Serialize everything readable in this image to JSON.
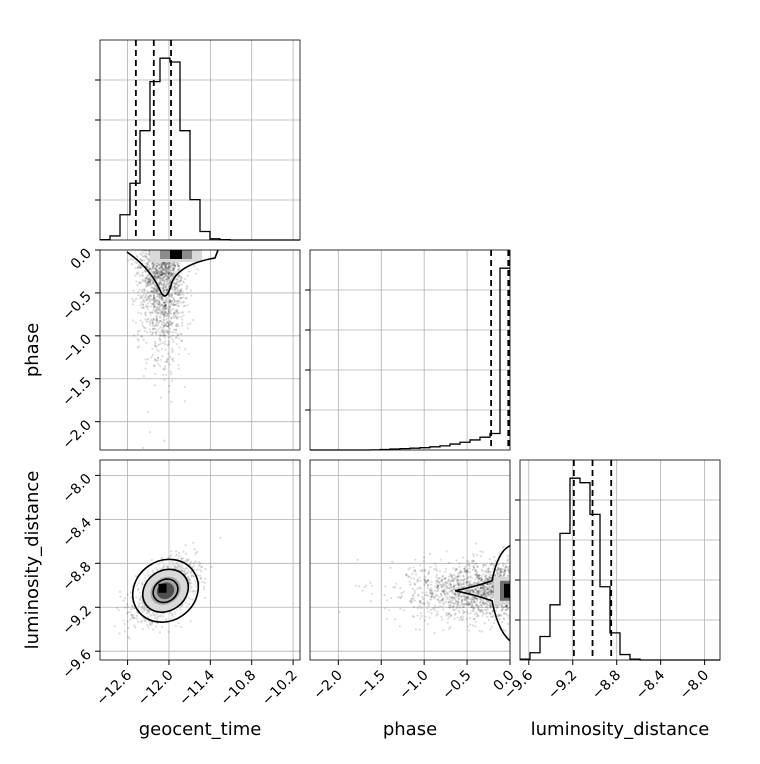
{
  "chart_data": {
    "type": "corner",
    "parameters": [
      "geocent_time",
      "phase",
      "luminosity_distance"
    ],
    "axis_labels": {
      "x": [
        "geocent_time",
        "phase",
        "luminosity_distance"
      ],
      "y": [
        "phase",
        "luminosity_distance"
      ]
    },
    "ranges": {
      "geocent_time": [
        -13.0,
        -10.1
      ],
      "phase": [
        -2.33,
        0.0
      ],
      "luminosity_distance": [
        -9.68,
        -7.86
      ]
    },
    "ticks": {
      "geocent_time": [
        -12.6,
        -12.0,
        -11.4,
        -10.8,
        -10.2
      ],
      "phase": [
        -2.0,
        -1.5,
        -1.0,
        -0.5,
        0.0
      ],
      "luminosity_distance": [
        -9.6,
        -9.2,
        -8.8,
        -8.4,
        -8.0
      ]
    },
    "tick_labels": {
      "geocent_time": [
        "−12.6",
        "−12.0",
        "−11.4",
        "−10.8",
        "−10.2"
      ],
      "phase": [
        "−2.0",
        "−1.5",
        "−1.0",
        "−0.5",
        "0.0"
      ],
      "luminosity_distance": [
        "−9.6",
        "−9.2",
        "−8.8",
        "−8.4",
        "−8.0"
      ]
    },
    "histograms": {
      "geocent_time": {
        "bin_edges": [
          -13.0,
          -12.855,
          -12.71,
          -12.565,
          -12.42,
          -12.275,
          -12.13,
          -11.985,
          -11.84,
          -11.695,
          -11.55,
          -11.405,
          -11.26,
          -11.115,
          -10.97,
          -10.825,
          -10.68,
          -10.535,
          -10.39,
          -10.245,
          -10.1
        ],
        "counts": [
          2,
          20,
          125,
          281,
          541,
          784,
          900,
          881,
          541,
          200,
          42,
          6,
          2,
          0,
          0,
          0,
          0,
          0,
          0,
          0
        ],
        "quantiles": [
          -12.48,
          -12.22,
          -11.97
        ]
      },
      "phase": {
        "bin_edges": [
          -2.33,
          -2.2135,
          -2.097,
          -1.9805,
          -1.864,
          -1.7475,
          -1.631,
          -1.5145,
          -1.398,
          -1.2815,
          -1.165,
          -1.0485,
          -0.932,
          -0.8155,
          -0.699,
          -0.5825,
          -0.466,
          -0.3495,
          -0.233,
          -0.1165,
          0.0
        ],
        "counts": [
          0,
          0,
          0,
          0,
          0,
          0,
          1,
          5,
          10,
          15,
          20,
          25,
          35,
          45,
          65,
          85,
          110,
          140,
          180,
          1985
        ],
        "quantiles": [
          -0.22,
          -0.02,
          0.0
        ]
      },
      "luminosity_distance": {
        "bin_edges": [
          -9.68,
          -9.589,
          -9.498,
          -9.407,
          -9.316,
          -9.225,
          -9.134,
          -9.043,
          -8.952,
          -8.861,
          -8.77,
          -8.679,
          -8.588,
          -8.497,
          -8.406,
          -8.315,
          -8.224,
          -8.133,
          -8.042,
          -7.951,
          -7.86
        ],
        "counts": [
          5,
          40,
          130,
          305,
          700,
          1005,
          980,
          805,
          405,
          150,
          30,
          5,
          0,
          0,
          0,
          0,
          0,
          0,
          0,
          0
        ],
        "quantiles": [
          -9.19,
          -9.02,
          -8.85
        ]
      }
    },
    "scatter": {
      "geocent_time_vs_phase": {
        "center": [
          -12.1,
          -0.15
        ],
        "spread": [
          0.17,
          0.55
        ]
      },
      "geocent_time_vs_luminosity_distance": {
        "center": [
          -12.05,
          -9.05
        ],
        "spread": [
          0.22,
          0.13
        ],
        "correlation": 0.5
      },
      "phase_vs_luminosity_distance": {
        "center": [
          -0.15,
          -9.05
        ],
        "spread": [
          0.55,
          0.13
        ]
      }
    },
    "contour_levels": [
      0.118,
      0.393,
      0.675,
      0.865
    ],
    "grid": true,
    "quantile_line_style": "dashed"
  }
}
